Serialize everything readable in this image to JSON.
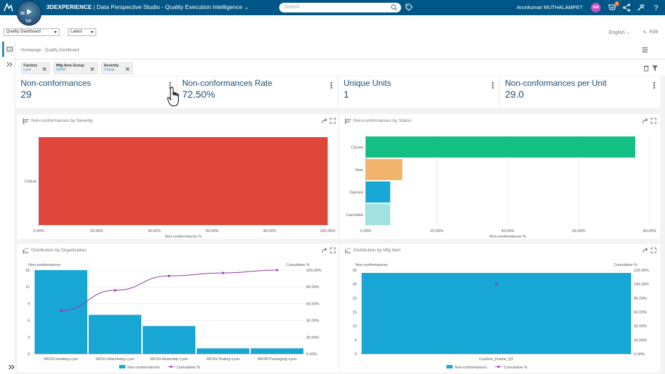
{
  "topbar": {
    "brand": "3DEXPERIENCE",
    "app_name": "Data Perspective Studio - Quality Execution Intelligence",
    "compass_label": "V,R",
    "search_placeholder": "Search",
    "user_name": "Arunkumar MUTHALAMPET",
    "avatar_initials": "AM",
    "notification_count": "1"
  },
  "toolbar": {
    "dashboard_select": "Quality Dashboard",
    "version_select": "Latest",
    "language": "English",
    "edit_label": "Edit"
  },
  "breadcrumb": {
    "home": "Homepage",
    "current": "Quality Dashboard"
  },
  "filters": [
    {
      "key": "Factory",
      "value": "Lyon"
    },
    {
      "key": "Mfg Item Group",
      "value": "GRBX"
    },
    {
      "key": "Severity",
      "value": "Critical"
    }
  ],
  "kpis": [
    {
      "title": "Non-conformances",
      "value": "29"
    },
    {
      "title": "Non-conformances Rate",
      "value": "72.50%"
    },
    {
      "title": "Unique Units",
      "value": "1"
    },
    {
      "title": "Non-conformances per Unit",
      "value": "29.0"
    }
  ],
  "colors": {
    "header": "#005686",
    "kpi_text": "#1a4f73",
    "critical": "#e0463a",
    "closed": "#14bf84",
    "new": "#f2b36d",
    "opened": "#18a6d4",
    "cancelled": "#a0e2df",
    "bar": "#18a6d4",
    "cumulative": "#8b3aa6"
  },
  "chart_data": [
    {
      "type": "bar",
      "orientation": "horizontal",
      "title": "Non-conformances by Severity",
      "categories": [
        "Critical"
      ],
      "values": [
        100
      ],
      "xlabel": "Non-conformances %",
      "xlim": [
        0,
        100
      ],
      "ticks": [
        "0.00%",
        "20.00%",
        "40.00%",
        "60.00%",
        "80.00%",
        "100.00%"
      ]
    },
    {
      "type": "bar",
      "orientation": "horizontal",
      "title": "Non-conformances by Status",
      "categories": [
        "Closed",
        "New",
        "Opened",
        "Cancelled"
      ],
      "values": [
        75.9,
        10.3,
        6.9,
        6.9
      ],
      "xlabel": "Non-conformances %",
      "xlim": [
        0,
        80
      ],
      "ticks": [
        "0.00%",
        "20.00%",
        "40.00%",
        "60.00%",
        "80.00%"
      ]
    },
    {
      "type": "bar",
      "title": "Distribution by Organization",
      "categories": [
        "WC02-Heating-Lyon",
        "WC01-Machining-Lyon",
        "WC03-Assembly-Lyon",
        "WC04-Testing-Lyon",
        "WC05-Packaging-Lyon"
      ],
      "series": [
        {
          "name": "Non-conformances",
          "values": [
            15,
            7,
            5,
            1,
            1
          ]
        },
        {
          "name": "Cumulative %",
          "values": [
            51.7,
            75.9,
            93.1,
            96.6,
            100
          ]
        }
      ],
      "ylabel": "Non-conformances",
      "y2label": "Cumulative %",
      "ylim": [
        0,
        15
      ],
      "yticks": [
        "0",
        "3",
        "6",
        "9",
        "12",
        "15"
      ],
      "y2lim": [
        0,
        100
      ],
      "y2ticks": [
        "0.00%",
        "20.00%",
        "40.00%",
        "60.00%",
        "80.00%",
        "100.00%"
      ],
      "legend": [
        "Non-conformances",
        "Cumulative %"
      ]
    },
    {
      "type": "bar",
      "title": "Distribution by Mfg Item",
      "categories": [
        "Cushion_Frame_QT"
      ],
      "series": [
        {
          "name": "Non-conformances",
          "values": [
            29
          ]
        },
        {
          "name": "Cumulative %",
          "values": [
            100
          ]
        }
      ],
      "ylabel": "Non-conformances",
      "y2label": "Cumulative %",
      "ylim": [
        0,
        30
      ],
      "yticks": [
        "0",
        "5",
        "10",
        "15",
        "20",
        "25",
        "30"
      ],
      "y2lim": [
        0,
        120
      ],
      "y2ticks": [
        "0.00%",
        "20.00%",
        "40.00%",
        "60.00%",
        "80.00%",
        "100.00%",
        "120.00%"
      ],
      "legend": [
        "Non-conformances",
        "Cumulative %"
      ]
    }
  ]
}
